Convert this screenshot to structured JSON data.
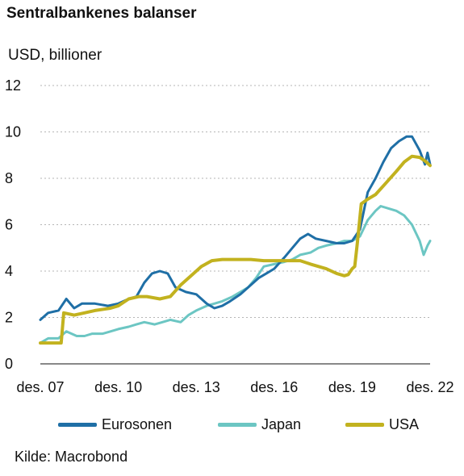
{
  "title": "Sentralbankenes balanser",
  "unit_label": "USD, billioner",
  "source": "Kilde: Macrobond",
  "chart_data": {
    "type": "line",
    "ylim": [
      0,
      12
    ],
    "yticks": [
      0,
      2,
      4,
      6,
      8,
      10,
      12
    ],
    "xlim": [
      2007.9,
      2022.9
    ],
    "xticks": [
      {
        "x": 2007.9,
        "label": "des. 07"
      },
      {
        "x": 2010.9,
        "label": "des. 10"
      },
      {
        "x": 2013.9,
        "label": "des. 13"
      },
      {
        "x": 2016.9,
        "label": "des. 16"
      },
      {
        "x": 2019.9,
        "label": "des. 19"
      },
      {
        "x": 2022.9,
        "label": "des. 22"
      }
    ],
    "grid": "horizontal-dashed",
    "legend_position": "bottom",
    "series": [
      {
        "name": "Eurosonen",
        "color": "#1f6fa6",
        "points": [
          [
            2007.9,
            1.9
          ],
          [
            2008.2,
            2.2
          ],
          [
            2008.6,
            2.3
          ],
          [
            2008.9,
            2.8
          ],
          [
            2009.2,
            2.4
          ],
          [
            2009.5,
            2.6
          ],
          [
            2010.0,
            2.6
          ],
          [
            2010.5,
            2.5
          ],
          [
            2010.9,
            2.6
          ],
          [
            2011.3,
            2.8
          ],
          [
            2011.6,
            2.9
          ],
          [
            2011.9,
            3.5
          ],
          [
            2012.2,
            3.9
          ],
          [
            2012.5,
            4.0
          ],
          [
            2012.8,
            3.9
          ],
          [
            2013.1,
            3.3
          ],
          [
            2013.5,
            3.1
          ],
          [
            2013.9,
            3.0
          ],
          [
            2014.3,
            2.6
          ],
          [
            2014.6,
            2.4
          ],
          [
            2014.9,
            2.5
          ],
          [
            2015.2,
            2.7
          ],
          [
            2015.6,
            3.0
          ],
          [
            2015.9,
            3.3
          ],
          [
            2016.3,
            3.7
          ],
          [
            2016.6,
            3.9
          ],
          [
            2016.9,
            4.1
          ],
          [
            2017.3,
            4.6
          ],
          [
            2017.6,
            5.0
          ],
          [
            2017.9,
            5.4
          ],
          [
            2018.2,
            5.6
          ],
          [
            2018.5,
            5.4
          ],
          [
            2018.9,
            5.3
          ],
          [
            2019.3,
            5.2
          ],
          [
            2019.6,
            5.2
          ],
          [
            2019.9,
            5.3
          ],
          [
            2020.2,
            5.8
          ],
          [
            2020.5,
            7.4
          ],
          [
            2020.8,
            8.0
          ],
          [
            2021.1,
            8.7
          ],
          [
            2021.4,
            9.3
          ],
          [
            2021.7,
            9.6
          ],
          [
            2022.0,
            9.8
          ],
          [
            2022.2,
            9.8
          ],
          [
            2022.5,
            9.2
          ],
          [
            2022.7,
            8.6
          ],
          [
            2022.8,
            9.1
          ],
          [
            2022.9,
            8.6
          ]
        ]
      },
      {
        "name": "Japan",
        "color": "#6cc6c3",
        "points": [
          [
            2007.9,
            0.9
          ],
          [
            2008.2,
            1.1
          ],
          [
            2008.6,
            1.1
          ],
          [
            2008.9,
            1.4
          ],
          [
            2009.3,
            1.2
          ],
          [
            2009.6,
            1.2
          ],
          [
            2009.9,
            1.3
          ],
          [
            2010.3,
            1.3
          ],
          [
            2010.6,
            1.4
          ],
          [
            2010.9,
            1.5
          ],
          [
            2011.3,
            1.6
          ],
          [
            2011.6,
            1.7
          ],
          [
            2011.9,
            1.8
          ],
          [
            2012.3,
            1.7
          ],
          [
            2012.6,
            1.8
          ],
          [
            2012.9,
            1.9
          ],
          [
            2013.3,
            1.8
          ],
          [
            2013.6,
            2.1
          ],
          [
            2013.9,
            2.3
          ],
          [
            2014.3,
            2.5
          ],
          [
            2014.6,
            2.6
          ],
          [
            2014.9,
            2.7
          ],
          [
            2015.3,
            2.9
          ],
          [
            2015.6,
            3.1
          ],
          [
            2015.9,
            3.3
          ],
          [
            2016.2,
            3.7
          ],
          [
            2016.5,
            4.2
          ],
          [
            2016.9,
            4.3
          ],
          [
            2017.3,
            4.4
          ],
          [
            2017.6,
            4.5
          ],
          [
            2017.9,
            4.7
          ],
          [
            2018.3,
            4.8
          ],
          [
            2018.6,
            5.0
          ],
          [
            2018.9,
            5.1
          ],
          [
            2019.3,
            5.2
          ],
          [
            2019.6,
            5.3
          ],
          [
            2019.9,
            5.3
          ],
          [
            2020.2,
            5.5
          ],
          [
            2020.5,
            6.2
          ],
          [
            2020.8,
            6.6
          ],
          [
            2021.0,
            6.8
          ],
          [
            2021.3,
            6.7
          ],
          [
            2021.6,
            6.6
          ],
          [
            2021.9,
            6.4
          ],
          [
            2022.2,
            6.0
          ],
          [
            2022.5,
            5.3
          ],
          [
            2022.65,
            4.7
          ],
          [
            2022.8,
            5.1
          ],
          [
            2022.9,
            5.3
          ]
        ]
      },
      {
        "name": "USA",
        "color": "#c2b21f",
        "points": [
          [
            2007.9,
            0.9
          ],
          [
            2008.5,
            0.9
          ],
          [
            2008.7,
            0.9
          ],
          [
            2008.8,
            2.2
          ],
          [
            2009.2,
            2.1
          ],
          [
            2009.6,
            2.2
          ],
          [
            2010.0,
            2.3
          ],
          [
            2010.6,
            2.4
          ],
          [
            2010.9,
            2.5
          ],
          [
            2011.3,
            2.8
          ],
          [
            2011.7,
            2.9
          ],
          [
            2012.0,
            2.9
          ],
          [
            2012.5,
            2.8
          ],
          [
            2012.9,
            2.9
          ],
          [
            2013.3,
            3.4
          ],
          [
            2013.7,
            3.8
          ],
          [
            2014.1,
            4.2
          ],
          [
            2014.5,
            4.45
          ],
          [
            2014.9,
            4.5
          ],
          [
            2015.5,
            4.5
          ],
          [
            2016.0,
            4.5
          ],
          [
            2016.5,
            4.45
          ],
          [
            2016.9,
            4.45
          ],
          [
            2017.5,
            4.45
          ],
          [
            2017.9,
            4.45
          ],
          [
            2018.3,
            4.3
          ],
          [
            2018.9,
            4.1
          ],
          [
            2019.3,
            3.9
          ],
          [
            2019.6,
            3.8
          ],
          [
            2019.75,
            3.85
          ],
          [
            2019.9,
            4.1
          ],
          [
            2020.0,
            4.2
          ],
          [
            2020.1,
            5.2
          ],
          [
            2020.25,
            6.9
          ],
          [
            2020.5,
            7.1
          ],
          [
            2020.8,
            7.3
          ],
          [
            2021.2,
            7.8
          ],
          [
            2021.6,
            8.3
          ],
          [
            2021.9,
            8.7
          ],
          [
            2022.2,
            8.95
          ],
          [
            2022.5,
            8.9
          ],
          [
            2022.7,
            8.75
          ],
          [
            2022.9,
            8.55
          ]
        ]
      }
    ]
  }
}
